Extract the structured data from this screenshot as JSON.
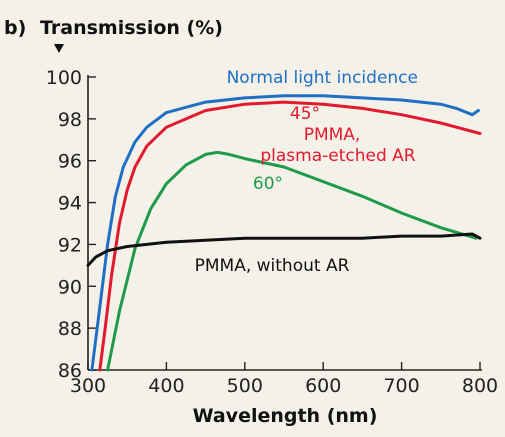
{
  "panel_label": "b)",
  "chart_data": {
    "type": "line",
    "title": "",
    "xlabel": "Wavelength (nm)",
    "ylabel": "Transmission (%)",
    "xlim": [
      300,
      800
    ],
    "ylim": [
      86,
      100
    ],
    "xticks": [
      300,
      400,
      500,
      600,
      700,
      800
    ],
    "yticks": [
      86,
      88,
      90,
      92,
      94,
      96,
      98,
      100
    ],
    "grid": false,
    "legend": "none",
    "series": [
      {
        "color": "#1f6fc4",
        "x": [
          305,
          315,
          325,
          335,
          345,
          360,
          375,
          400,
          450,
          500,
          550,
          600,
          650,
          700,
          750,
          770,
          790,
          798
        ],
        "y": [
          86.0,
          89.0,
          92.0,
          94.3,
          95.7,
          96.9,
          97.6,
          98.3,
          98.8,
          99.0,
          99.1,
          99.1,
          99.0,
          98.9,
          98.7,
          98.5,
          98.2,
          98.4
        ]
      },
      {
        "color": "#e3192f",
        "x": [
          315,
          322,
          330,
          340,
          350,
          360,
          375,
          400,
          450,
          500,
          550,
          600,
          650,
          700,
          750,
          800
        ],
        "y": [
          86.0,
          88.0,
          90.5,
          93.0,
          94.6,
          95.7,
          96.7,
          97.6,
          98.4,
          98.7,
          98.8,
          98.7,
          98.5,
          98.2,
          97.8,
          97.3
        ]
      },
      {
        "color": "#1e9a4a",
        "x": [
          325,
          340,
          360,
          380,
          400,
          425,
          450,
          465,
          480,
          500,
          550,
          600,
          650,
          700,
          750,
          795
        ],
        "y": [
          86.0,
          88.8,
          91.8,
          93.7,
          94.9,
          95.8,
          96.3,
          96.4,
          96.3,
          96.1,
          95.7,
          95.0,
          94.3,
          93.5,
          92.8,
          92.3
        ]
      },
      {
        "color": "#111111",
        "x": [
          300,
          310,
          325,
          350,
          400,
          450,
          500,
          550,
          600,
          650,
          700,
          750,
          790,
          800
        ],
        "y": [
          91.0,
          91.4,
          91.7,
          91.9,
          92.1,
          92.2,
          92.3,
          92.3,
          92.3,
          92.3,
          92.4,
          92.4,
          92.5,
          92.3
        ]
      }
    ],
    "annotations": [
      {
        "text": "Normal light incidence",
        "color": "#1f6fc4"
      },
      {
        "text": "45°",
        "color": "#e3192f"
      },
      {
        "text": "PMMA,",
        "color": "#e3192f"
      },
      {
        "text": "plasma-etched AR",
        "color": "#e3192f"
      },
      {
        "text": "60°",
        "color": "#1e9a4a"
      },
      {
        "text": "PMMA, without AR",
        "color": "#111111"
      }
    ]
  }
}
